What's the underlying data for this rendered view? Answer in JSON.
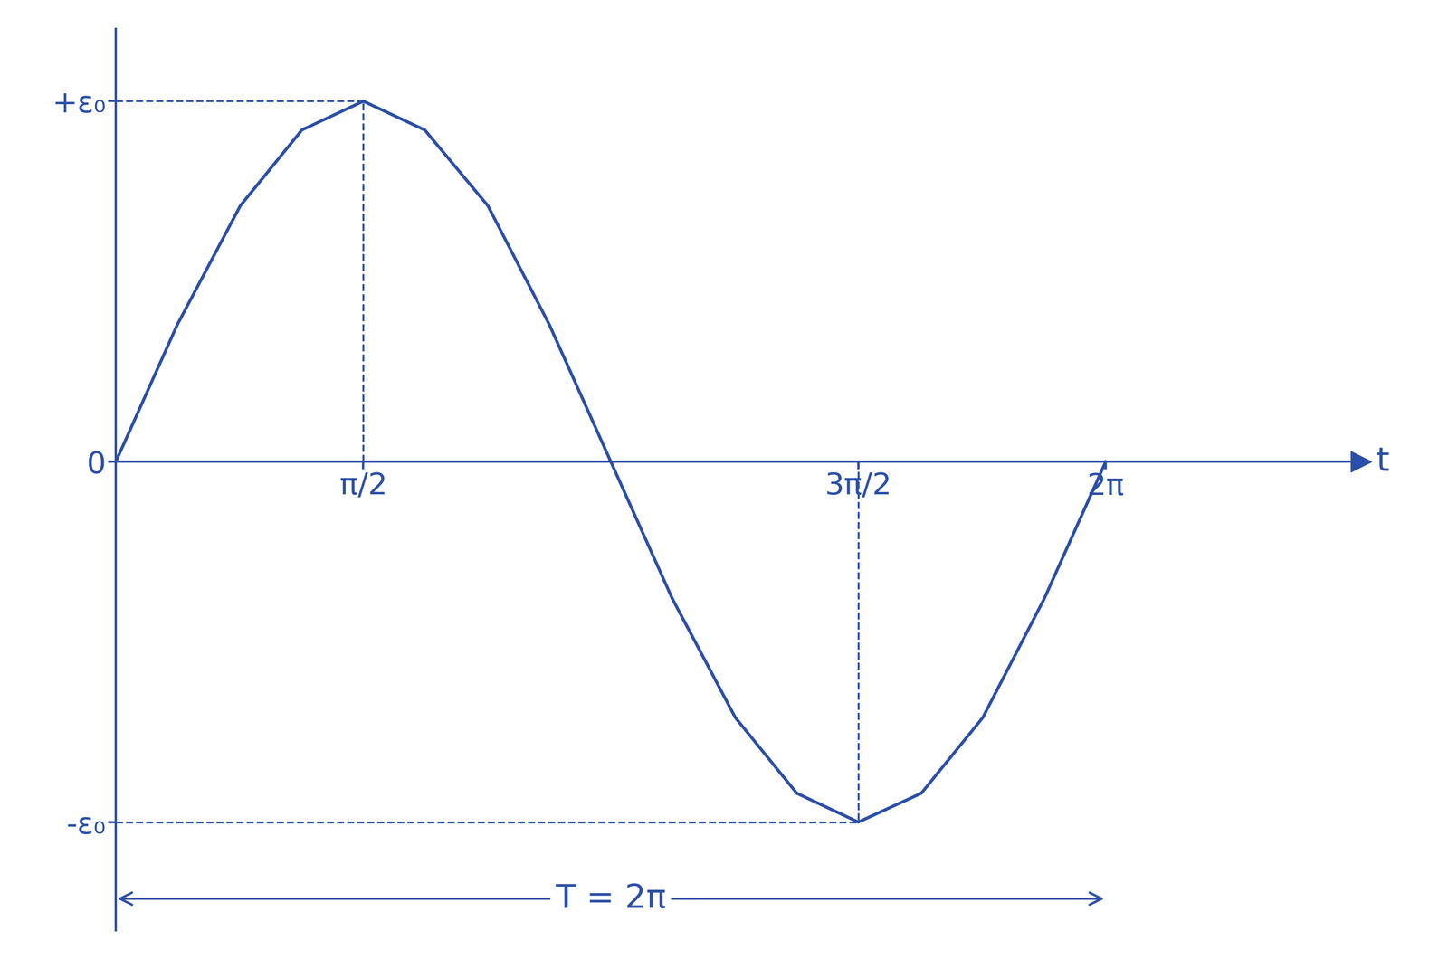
{
  "chart_data": {
    "type": "line",
    "x_label": "t",
    "x": [
      0,
      0.39,
      0.79,
      1.18,
      1.57,
      1.96,
      2.36,
      2.75,
      3.14,
      3.53,
      3.93,
      4.32,
      4.71,
      5.11,
      5.5,
      5.89,
      6.28
    ],
    "values": [
      0,
      0.38,
      0.71,
      0.92,
      1,
      0.92,
      0.71,
      0.38,
      0,
      -0.38,
      -0.71,
      -0.92,
      -1,
      -0.92,
      -0.71,
      -0.38,
      0
    ],
    "color": "#2b4fa6",
    "line_style": "solid",
    "xlim": [
      0,
      7.9
    ],
    "ylim": [
      -1.3,
      1.2
    ],
    "xticks": [
      {
        "value": 1.57,
        "label": "π/2"
      },
      {
        "value": 4.71,
        "label": "3π/2"
      },
      {
        "value": 6.28,
        "label": "2π"
      }
    ],
    "yticks": [
      {
        "value": 1,
        "label": "+ε₀"
      },
      0,
      {
        "value": -1,
        "label": "-ε₀"
      }
    ],
    "annotations": [
      {
        "text": "T = 2π",
        "x_start": 0,
        "x_end": 6.28
      }
    ],
    "grid": false
  }
}
